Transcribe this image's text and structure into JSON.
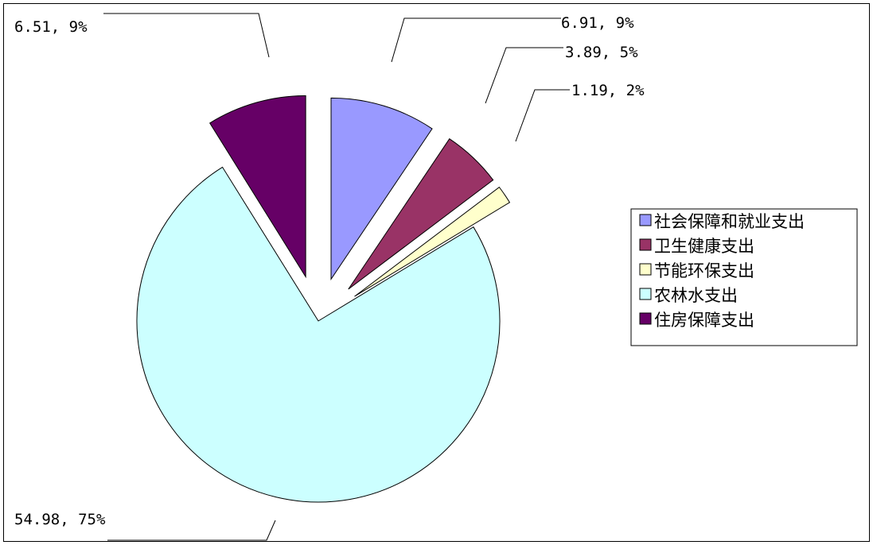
{
  "chart_data": {
    "type": "pie",
    "exploded": true,
    "legend_position": "right",
    "series": [
      {
        "name": "社会保障和就业支出",
        "value": 6.91,
        "percent": 9,
        "label": "6.91, 9%",
        "color": "#9999ff"
      },
      {
        "name": "卫生健康支出",
        "value": 3.89,
        "percent": 5,
        "label": "3.89, 5%",
        "color": "#993366"
      },
      {
        "name": "节能环保支出",
        "value": 1.19,
        "percent": 2,
        "label": "1.19, 2%",
        "color": "#ffffcc"
      },
      {
        "name": "农林水支出",
        "value": 54.98,
        "percent": 75,
        "label": "54.98, 75%",
        "color": "#ccffff"
      },
      {
        "name": "住房保障支出",
        "value": 6.51,
        "percent": 9,
        "label": "6.51, 9%",
        "color": "#660066"
      }
    ]
  }
}
